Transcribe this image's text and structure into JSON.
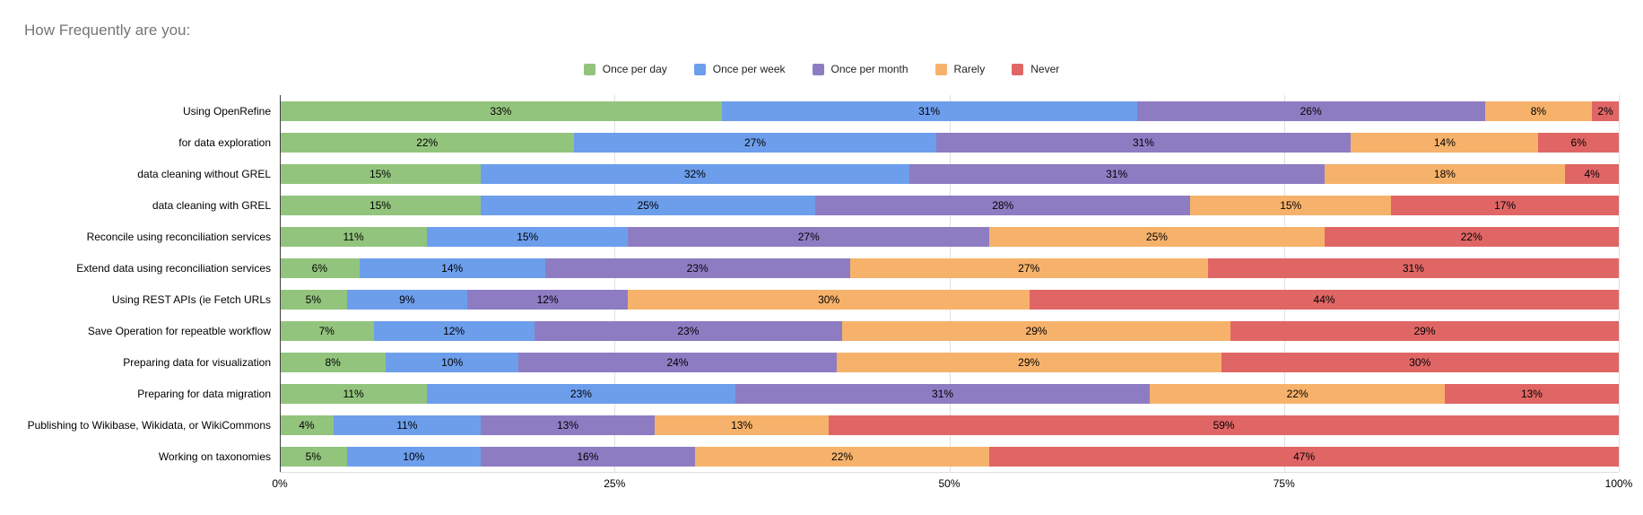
{
  "title": "How Frequently are you:",
  "chart_data": {
    "type": "bar",
    "stacked": true,
    "orientation": "horizontal",
    "unit": "%",
    "title": "How Frequently are you:",
    "legend_position": "top",
    "grid": true,
    "categories": [
      "Using OpenRefine",
      "for data exploration",
      "data cleaning without GREL",
      "data cleaning with GREL",
      "Reconcile using reconciliation services",
      "Extend data using reconciliation services",
      "Using REST APIs (ie Fetch URLs",
      "Save Operation for repeatble workflow",
      "Preparing data for visualization",
      "Preparing for data migration",
      "Publishing to Wikibase, Wikidata, or WikiCommons",
      "Working on taxonomies"
    ],
    "series": [
      {
        "name": "Once per day",
        "color": "#93c47d",
        "values": [
          33,
          22,
          15,
          15,
          11,
          6,
          5,
          7,
          8,
          11,
          4,
          5
        ]
      },
      {
        "name": "Once per week",
        "color": "#6d9eeb",
        "values": [
          31,
          27,
          32,
          25,
          15,
          14,
          9,
          12,
          10,
          23,
          11,
          10
        ]
      },
      {
        "name": "Once per month",
        "color": "#8e7cc3",
        "values": [
          26,
          31,
          31,
          28,
          27,
          23,
          12,
          23,
          24,
          31,
          13,
          16
        ]
      },
      {
        "name": "Rarely",
        "color": "#f6b26b",
        "values": [
          8,
          14,
          18,
          15,
          25,
          27,
          30,
          29,
          29,
          22,
          13,
          22
        ]
      },
      {
        "name": "Never",
        "color": "#e06666",
        "values": [
          2,
          6,
          4,
          17,
          22,
          31,
          44,
          29,
          30,
          13,
          59,
          47
        ]
      }
    ],
    "x_axis": {
      "range": [
        0,
        100
      ],
      "tick_values": [
        0,
        25,
        50,
        75,
        100
      ],
      "ticks": [
        "0%",
        "25%",
        "50%",
        "75%",
        "100%"
      ]
    },
    "colors": {
      "title_text": "#757575",
      "axis_line": "#424242",
      "gridline": "#e0e0e0",
      "label_text": "#000000",
      "background": "#ffffff"
    }
  }
}
